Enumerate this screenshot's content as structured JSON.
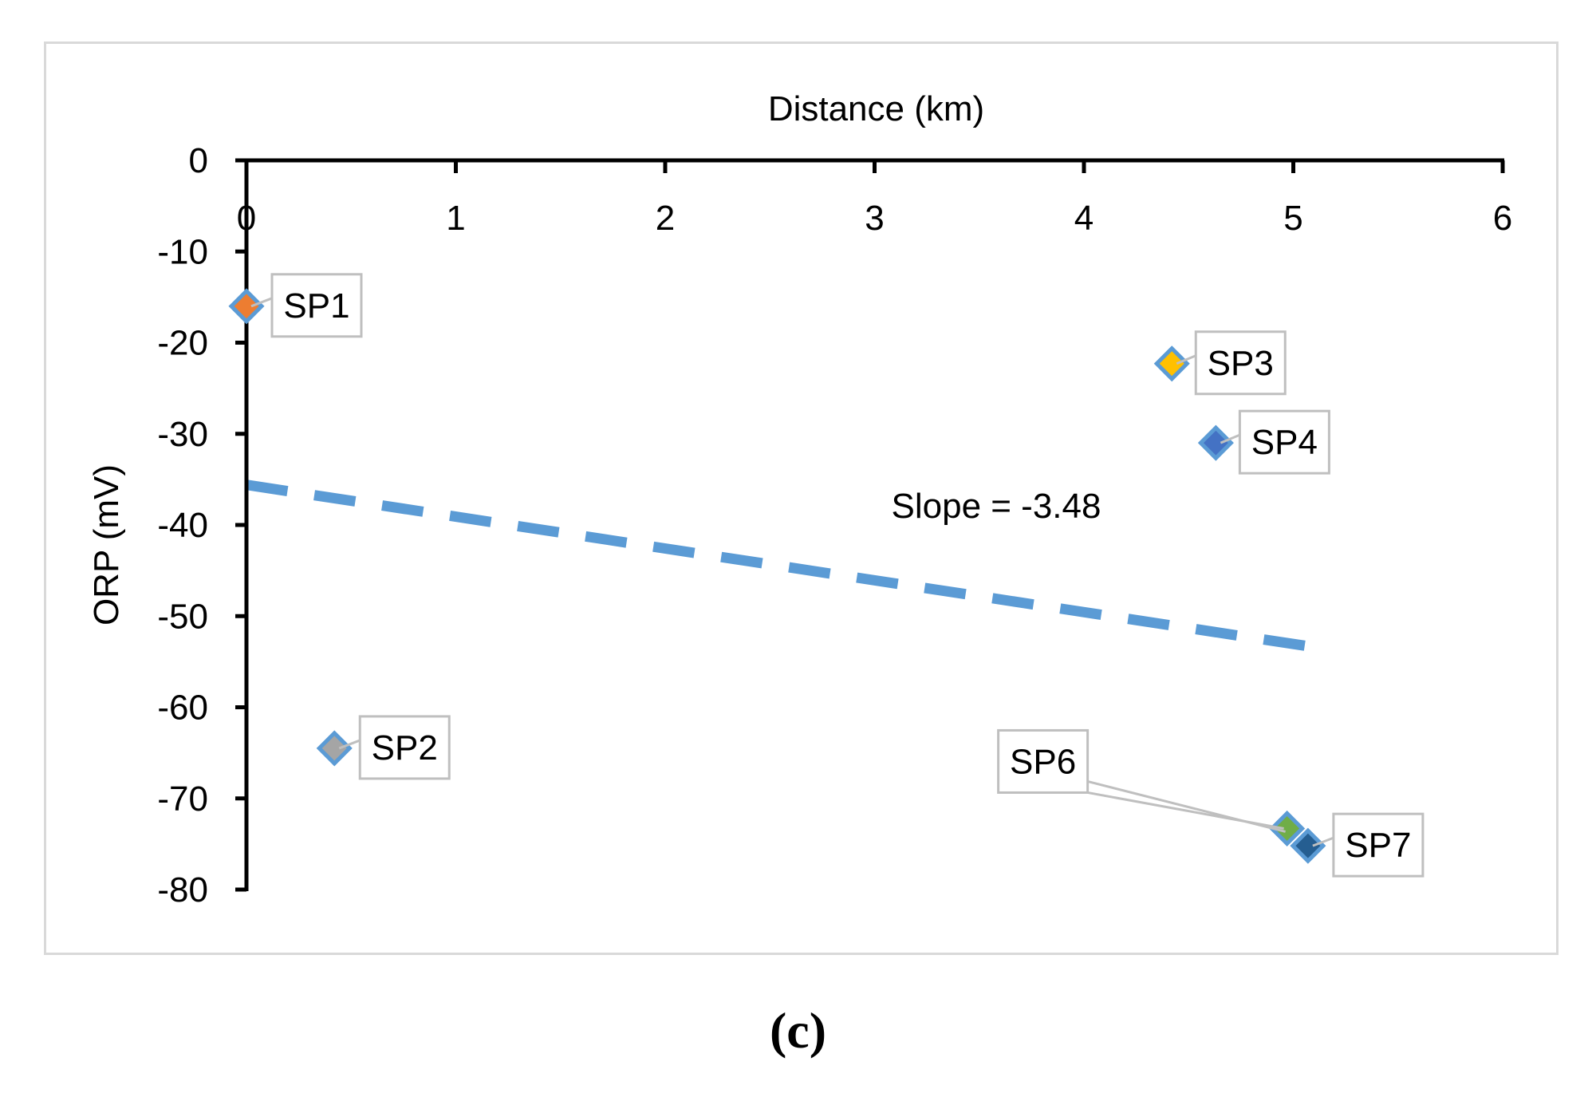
{
  "chart_data": {
    "type": "scatter",
    "title": "",
    "xlabel": "Distance (km)",
    "ylabel": "ORP (mV)",
    "xlim": [
      0,
      6
    ],
    "ylim": [
      -80,
      0
    ],
    "x_ticks": [
      0,
      1,
      2,
      3,
      4,
      5,
      6
    ],
    "y_ticks": [
      0,
      -10,
      -20,
      -30,
      -40,
      -50,
      -60,
      -70,
      -80
    ],
    "x_axis_position": "top",
    "grid": false,
    "legend": "none",
    "points": [
      {
        "label": "SP1",
        "x": 0.0,
        "y": -16,
        "color": "#ed7d31"
      },
      {
        "label": "SP2",
        "x": 0.42,
        "y": -64.5,
        "color": "#a5a5a5"
      },
      {
        "label": "SP3",
        "x": 4.42,
        "y": -22.3,
        "color": "#ffc000"
      },
      {
        "label": "SP4",
        "x": 4.63,
        "y": -31,
        "color": "#4472c4"
      },
      {
        "label": "SP6",
        "x": 4.97,
        "y": -73.3,
        "color": "#70ad47"
      },
      {
        "label": "SP7",
        "x": 5.07,
        "y": -75.2,
        "color": "#255e91"
      }
    ],
    "marker_outline_color": "#5b9bd5",
    "trendline": {
      "type": "linear",
      "style": "dashed",
      "color": "#5b9bd5",
      "x": [
        0,
        5.07
      ],
      "y": [
        -35.6,
        -53.3
      ]
    },
    "annotation": "Slope = -3.48"
  },
  "caption": "(c)"
}
